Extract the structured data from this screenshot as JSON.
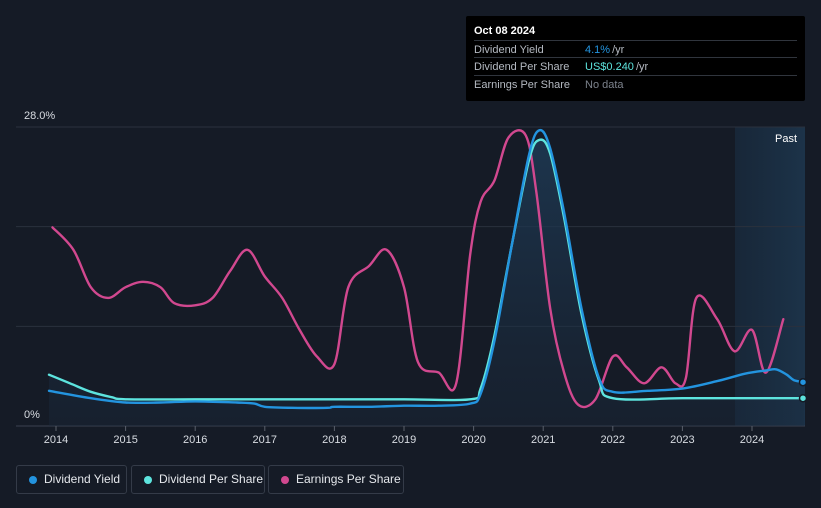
{
  "chart_data": {
    "type": "line",
    "title": "",
    "xlabel": "",
    "ylabel": "",
    "ylim": [
      0,
      28
    ],
    "y_tick_labels": [
      "28.0%",
      "0%"
    ],
    "x": [
      2014,
      2015,
      2016,
      2017,
      2018,
      2019,
      2020,
      2021,
      2022,
      2023,
      2024
    ],
    "x_tick_labels": [
      "2014",
      "2015",
      "2016",
      "2017",
      "2018",
      "2019",
      "2020",
      "2021",
      "2022",
      "2023",
      "2024"
    ],
    "past_label": "Past",
    "series": [
      {
        "name": "Dividend Yield",
        "color": "#2394df",
        "points": [
          [
            2013.9,
            3.3
          ],
          [
            2014.5,
            2.6
          ],
          [
            2015.0,
            2.2
          ],
          [
            2015.5,
            2.2
          ],
          [
            2016.0,
            2.3
          ],
          [
            2016.6,
            2.2
          ],
          [
            2016.85,
            2.1
          ],
          [
            2017.0,
            1.8
          ],
          [
            2017.4,
            1.7
          ],
          [
            2017.9,
            1.7
          ],
          [
            2018.0,
            1.8
          ],
          [
            2018.5,
            1.8
          ],
          [
            2019.0,
            1.9
          ],
          [
            2019.5,
            1.9
          ],
          [
            2019.95,
            2.1
          ],
          [
            2020.1,
            3.0
          ],
          [
            2020.3,
            8.0
          ],
          [
            2020.55,
            17.0
          ],
          [
            2020.8,
            25.5
          ],
          [
            2020.95,
            27.7
          ],
          [
            2021.1,
            26.0
          ],
          [
            2021.3,
            20.0
          ],
          [
            2021.55,
            11.0
          ],
          [
            2021.8,
            4.5
          ],
          [
            2022.0,
            3.2
          ],
          [
            2022.5,
            3.3
          ],
          [
            2023.0,
            3.5
          ],
          [
            2023.5,
            4.2
          ],
          [
            2023.9,
            4.9
          ],
          [
            2024.2,
            5.2
          ],
          [
            2024.35,
            5.3
          ],
          [
            2024.5,
            4.8
          ],
          [
            2024.6,
            4.3
          ],
          [
            2024.75,
            4.1
          ]
        ]
      },
      {
        "name": "Dividend Per Share",
        "color": "#5de4de",
        "points": [
          [
            2013.9,
            4.8
          ],
          [
            2014.2,
            4.0
          ],
          [
            2014.5,
            3.2
          ],
          [
            2014.8,
            2.7
          ],
          [
            2015.0,
            2.5
          ],
          [
            2016.0,
            2.5
          ],
          [
            2017.0,
            2.5
          ],
          [
            2018.0,
            2.5
          ],
          [
            2019.0,
            2.5
          ],
          [
            2019.95,
            2.5
          ],
          [
            2020.1,
            3.5
          ],
          [
            2020.3,
            8.5
          ],
          [
            2020.55,
            17.0
          ],
          [
            2020.8,
            25.0
          ],
          [
            2020.95,
            26.8
          ],
          [
            2021.1,
            25.5
          ],
          [
            2021.3,
            19.5
          ],
          [
            2021.55,
            10.5
          ],
          [
            2021.8,
            4.3
          ],
          [
            2022.0,
            2.6
          ],
          [
            2023.0,
            2.6
          ],
          [
            2024.0,
            2.6
          ],
          [
            2024.75,
            2.6
          ]
        ]
      },
      {
        "name": "Earnings Per Share",
        "color": "#d1488f",
        "points": [
          [
            2013.95,
            18.6
          ],
          [
            2014.25,
            16.5
          ],
          [
            2014.5,
            13.0
          ],
          [
            2014.75,
            12.0
          ],
          [
            2015.0,
            13.0
          ],
          [
            2015.25,
            13.5
          ],
          [
            2015.5,
            13.0
          ],
          [
            2015.7,
            11.5
          ],
          [
            2016.0,
            11.3
          ],
          [
            2016.25,
            12.0
          ],
          [
            2016.5,
            14.5
          ],
          [
            2016.75,
            16.5
          ],
          [
            2017.0,
            14.0
          ],
          [
            2017.25,
            12.0
          ],
          [
            2017.5,
            9.0
          ],
          [
            2017.75,
            6.5
          ],
          [
            2018.0,
            5.8
          ],
          [
            2018.2,
            13.0
          ],
          [
            2018.5,
            15.0
          ],
          [
            2018.75,
            16.5
          ],
          [
            2019.0,
            13.0
          ],
          [
            2019.2,
            6.0
          ],
          [
            2019.5,
            5.0
          ],
          [
            2019.75,
            4.0
          ],
          [
            2019.95,
            16.0
          ],
          [
            2020.1,
            21.0
          ],
          [
            2020.3,
            23.0
          ],
          [
            2020.5,
            27.0
          ],
          [
            2020.75,
            27.2
          ],
          [
            2020.9,
            22.0
          ],
          [
            2021.1,
            11.0
          ],
          [
            2021.3,
            5.0
          ],
          [
            2021.5,
            2.0
          ],
          [
            2021.75,
            2.5
          ],
          [
            2022.0,
            6.5
          ],
          [
            2022.2,
            5.5
          ],
          [
            2022.45,
            4.0
          ],
          [
            2022.7,
            5.5
          ],
          [
            2022.9,
            4.0
          ],
          [
            2023.05,
            4.5
          ],
          [
            2023.2,
            12.0
          ],
          [
            2023.5,
            10.0
          ],
          [
            2023.75,
            7.0
          ],
          [
            2024.0,
            9.0
          ],
          [
            2024.2,
            5.0
          ],
          [
            2024.45,
            10.0
          ]
        ]
      }
    ],
    "tooltip": {
      "date": "Oct 08 2024",
      "rows": [
        {
          "label": "Dividend Yield",
          "value": "4.1%",
          "unit": "/yr",
          "color": "#2394df"
        },
        {
          "label": "Dividend Per Share",
          "value": "US$0.240",
          "unit": "/yr",
          "color": "#5de4de"
        },
        {
          "label": "Earnings Per Share",
          "value": "No data",
          "unit": "",
          "color": "#7d838d"
        }
      ]
    },
    "legend": [
      {
        "label": "Dividend Yield",
        "color": "#2394df"
      },
      {
        "label": "Dividend Per Share",
        "color": "#5de4de"
      },
      {
        "label": "Earnings Per Share",
        "color": "#d1488f"
      }
    ]
  }
}
